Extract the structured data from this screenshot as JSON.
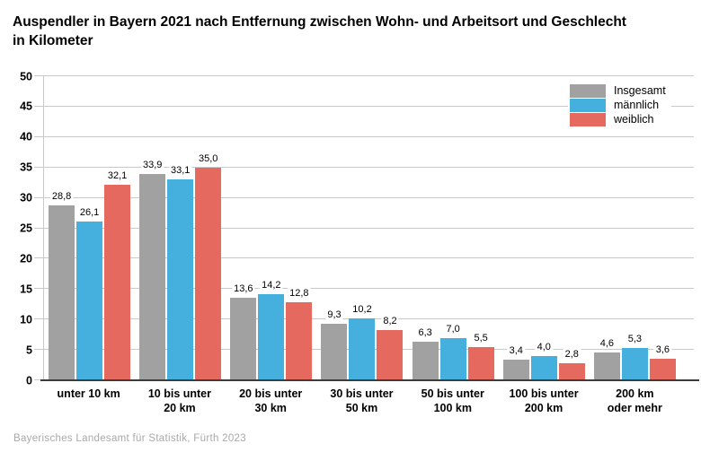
{
  "title": "Auspendler in Bayern 2021 nach Entfernung zwischen Wohn- und Arbeitsort und Geschlecht\nin Kilometer",
  "footer": "Bayerisches Landesamt für Statistik, Fürth 2023",
  "colors": {
    "insgesamt": "#a1a1a1",
    "maennlich": "#45b0dd",
    "weiblich": "#e6695f",
    "gridline": "#c9c9c9",
    "axis_line": "#3c3c3c",
    "footer_text": "#a8a8a8"
  },
  "chart_data": {
    "type": "bar",
    "title": "Auspendler in Bayern 2021 nach Entfernung zwischen Wohn- und Arbeitsort und Geschlecht in Kilometer",
    "categories": [
      "unter 10 km",
      "10 bis unter\n20 km",
      "20 bis unter\n30 km",
      "30 bis unter\n50 km",
      "50 bis unter\n100 km",
      "100 bis unter\n200 km",
      "200 km\noder mehr"
    ],
    "series": [
      {
        "name": "Insgesamt",
        "color": "#a1a1a1",
        "values": [
          28.8,
          33.9,
          13.6,
          9.3,
          6.3,
          3.4,
          4.6
        ]
      },
      {
        "name": "männlich",
        "color": "#45b0dd",
        "values": [
          26.1,
          33.1,
          14.2,
          10.2,
          7.0,
          4.0,
          5.3
        ]
      },
      {
        "name": "weiblich",
        "color": "#e6695f",
        "values": [
          32.1,
          35.0,
          12.8,
          8.2,
          5.5,
          2.8,
          3.6
        ]
      }
    ],
    "xlabel": "",
    "ylabel": "",
    "ylim": [
      0,
      50
    ],
    "ytick_step": 5,
    "grid": true,
    "legend_position": "top-right",
    "decimal_separator": ",",
    "value_labels_shown": true
  }
}
